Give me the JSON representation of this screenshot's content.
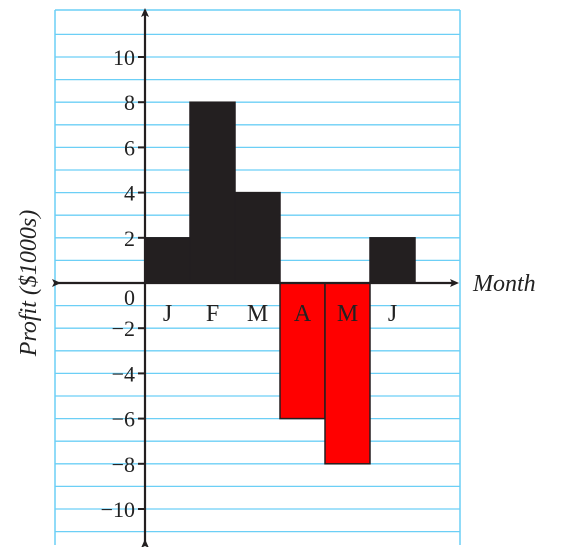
{
  "chart_data": {
    "type": "bar",
    "categories": [
      "J",
      "F",
      "M",
      "A",
      "M",
      "J"
    ],
    "values": [
      2,
      8,
      4,
      -6,
      -8,
      2
    ],
    "xlabel": "Month",
    "ylabel": "Profit ($1000s)",
    "origin_label": "0",
    "ylim": [
      -11.5,
      11.5
    ],
    "yticks": [
      -10,
      -8,
      -6,
      -4,
      -2,
      2,
      4,
      6,
      8,
      10
    ],
    "ytick_labels": [
      "−10",
      "−8",
      "−6",
      "−4",
      "−2",
      "2",
      "4",
      "6",
      "8",
      "10"
    ],
    "grid": true,
    "colors": {
      "positive": "#231f20",
      "negative": "#ff0000",
      "grid": "#6ccff6",
      "axis": "#231f20"
    }
  }
}
